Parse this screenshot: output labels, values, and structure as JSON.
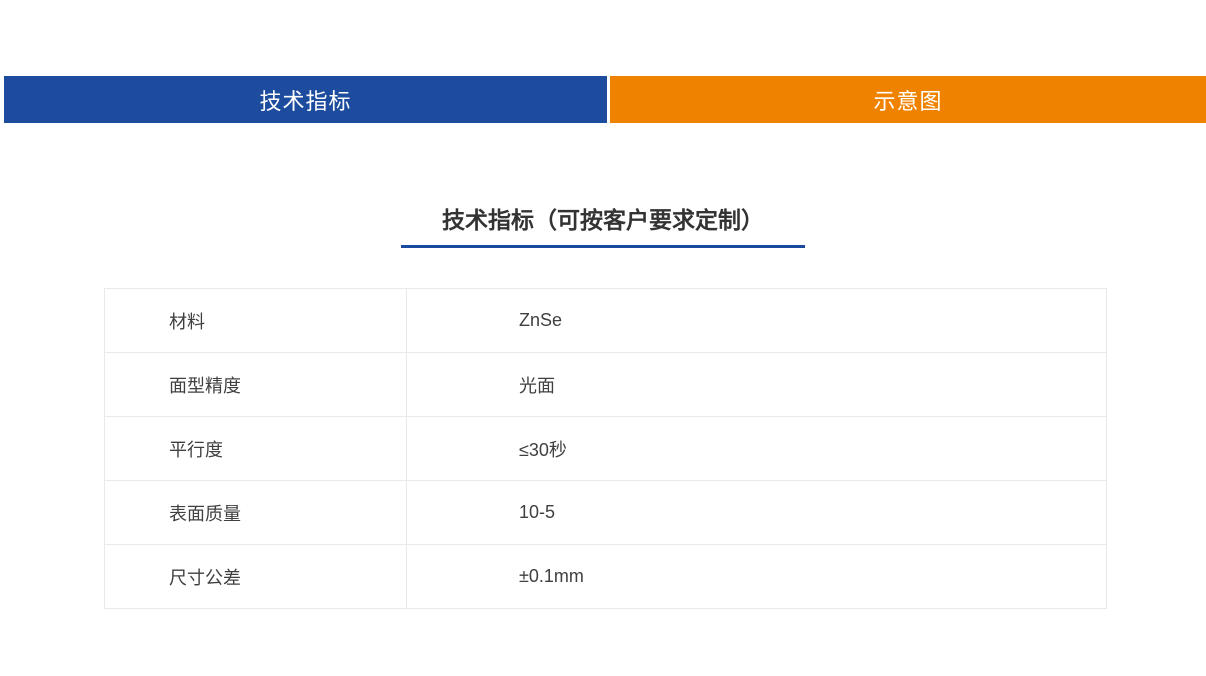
{
  "tabs": [
    {
      "id": "tech-specs",
      "label": "技术指标",
      "background": "#1d4c9f",
      "text_color": "#ffffff",
      "active": true
    },
    {
      "id": "diagram",
      "label": "示意图",
      "background": "#ef8300",
      "text_color": "#ffffff",
      "active": false
    }
  ],
  "section": {
    "title": "技术指标（可按客户要求定制）",
    "title_color": "#333333",
    "underline_color": "#1a4a9e"
  },
  "spec_table": {
    "border_color": "#e9e9e9",
    "text_color": "#404040",
    "rows": [
      {
        "label": "材料",
        "value": "ZnSe"
      },
      {
        "label": "面型精度",
        "value": "光面"
      },
      {
        "label": "平行度",
        "value": "≤30秒"
      },
      {
        "label": "表面质量",
        "value": "10-5"
      },
      {
        "label": "尺寸公差",
        "value": "±0.1mm"
      }
    ]
  }
}
